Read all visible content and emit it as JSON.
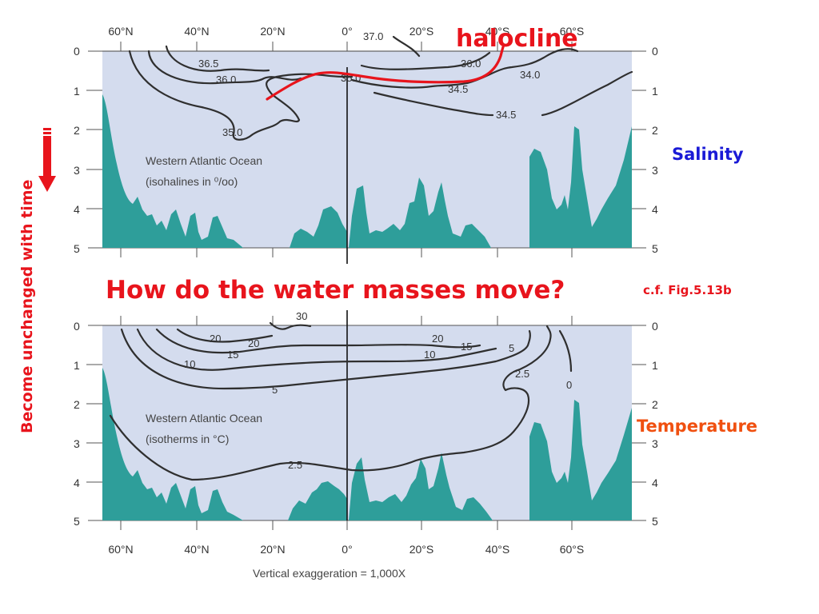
{
  "salinity_panel": {
    "top_lat_labels": [
      "60°N",
      "40°N",
      "20°N",
      "0°",
      "20°S",
      "40°S",
      "60°S"
    ],
    "depth_labels": [
      "0",
      "1",
      "2",
      "3",
      "4",
      "5"
    ],
    "caption_line1": "Western Atlantic Ocean",
    "caption_line2": "(isohalines in ⁰/oo)",
    "contours": [
      "36.5",
      "36.0",
      "35.0",
      "37.0",
      "36.0",
      "35.0",
      "34.5",
      "34.0",
      "34.5"
    ],
    "title": "Salinity",
    "halocline_label": "halocline"
  },
  "temperature_panel": {
    "bottom_lat_labels": [
      "60°N",
      "40°N",
      "20°N",
      "0°",
      "20°S",
      "40°S",
      "60°S"
    ],
    "depth_labels": [
      "0",
      "1",
      "2",
      "3",
      "4",
      "5"
    ],
    "caption_line1": "Western Atlantic Ocean",
    "caption_line2": "(isotherms in °C)",
    "contours": [
      "30",
      "20",
      "20",
      "15",
      "10",
      "5",
      "2.5",
      "20",
      "15",
      "10",
      "5",
      "2.5",
      "0"
    ],
    "title": "Temperature"
  },
  "question": "How do the water masses move?",
  "reference": "c.f. Fig.5.13b",
  "side_note": "Become unchanged with time",
  "footer": "Vertical exaggeration = 1,000X",
  "colors": {
    "ocean": "#d4dcee",
    "seafloor": "#2e9e9a",
    "annotation_red": "#e8141c",
    "salinity_blue": "#1a1ad6",
    "temperature_orange": "#f05010"
  }
}
